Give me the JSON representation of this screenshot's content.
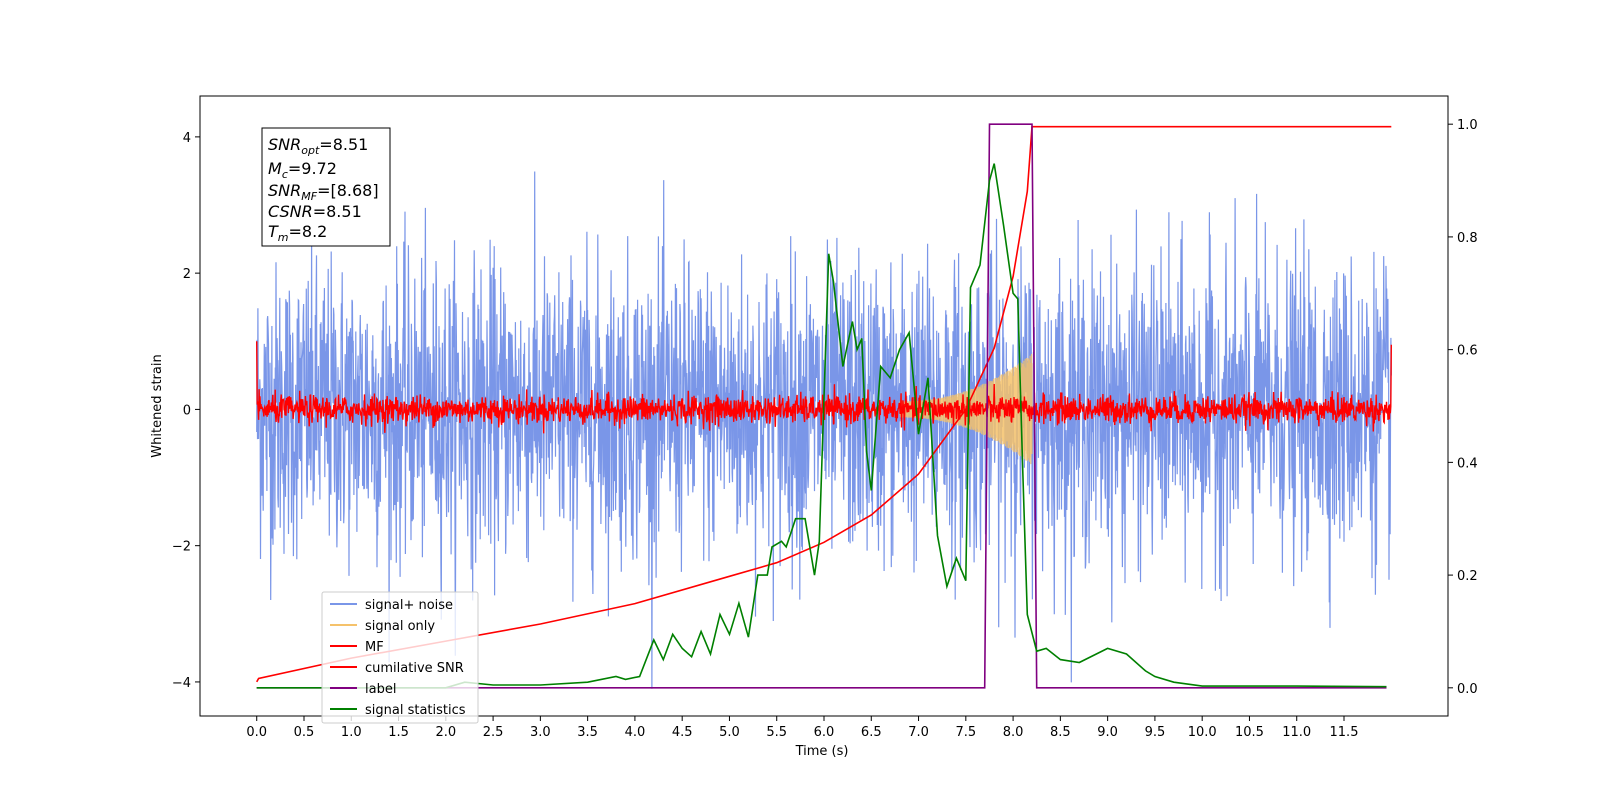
{
  "chart_data": {
    "type": "line",
    "xlabel": "Time (s)",
    "ylabel": "Whitened strain",
    "xlim": [
      -0.6,
      12.6
    ],
    "ylim": [
      -4.5,
      4.6
    ],
    "ylim_right": [
      -0.05,
      1.05
    ],
    "x_ticks": [
      "0.0",
      "0.5",
      "1.0",
      "1.5",
      "2.0",
      "2.5",
      "3.0",
      "3.5",
      "4.0",
      "4.5",
      "5.0",
      "5.5",
      "6.0",
      "6.5",
      "7.0",
      "7.5",
      "8.0",
      "8.5",
      "9.0",
      "9.5",
      "10.0",
      "10.5",
      "11.0",
      "11.5"
    ],
    "y_ticks_left": [
      "4",
      "2",
      "0",
      "−2",
      "−4"
    ],
    "y_ticks_right": [
      "1.0",
      "0.8",
      "0.6",
      "0.4",
      "0.2",
      "0.0"
    ],
    "grid": false,
    "legend_position": "lower-left",
    "info_box": {
      "snr_opt": {
        "main": "SNR",
        "sub": "opt",
        "value": "=8.51"
      },
      "mc": {
        "main": "M",
        "sub": "c",
        "value": "=9.72"
      },
      "snr_mf": {
        "main": "SNR",
        "sub": "MF",
        "value": "=[8.68]"
      },
      "csnr": {
        "main": "CSNR",
        "sub": "",
        "value": "=8.51"
      },
      "tm": {
        "main": "T",
        "sub": "m",
        "value": "=8.2"
      }
    },
    "series": [
      {
        "name": "signal+ noise",
        "axis": "left",
        "color": "#7a96e8",
        "noise_amplitude": 1.3,
        "range": [
          0.0,
          12.0
        ]
      },
      {
        "name": "signal only",
        "axis": "left",
        "color": "#f5c26b",
        "chirp_start": 6.8,
        "chirp_end": 8.2,
        "peak_amplitude": 0.7
      },
      {
        "name": "MF",
        "axis": "left",
        "color": "#ff0000",
        "noise_amplitude": 0.13,
        "range": [
          0.0,
          12.0
        ]
      },
      {
        "name": "cumilative SNR",
        "axis": "left",
        "color": "#ff0000",
        "x": [
          0.0,
          0.02,
          1.0,
          2.0,
          3.0,
          4.0,
          5.0,
          5.5,
          6.0,
          6.5,
          7.0,
          7.5,
          7.8,
          8.0,
          8.15,
          8.2,
          12.0
        ],
        "y": [
          -4.0,
          -3.95,
          -3.65,
          -3.4,
          -3.15,
          -2.85,
          -2.45,
          -2.25,
          -1.95,
          -1.55,
          -0.95,
          0.0,
          0.9,
          1.95,
          3.2,
          4.15,
          4.15
        ]
      },
      {
        "name": "label",
        "axis": "right",
        "color": "#800080",
        "x": [
          0.0,
          7.7,
          7.75,
          8.2,
          8.25,
          11.95
        ],
        "y": [
          0.0,
          0.0,
          1.0,
          1.0,
          0.0,
          0.0
        ]
      },
      {
        "name": "signal statistics",
        "axis": "right",
        "color": "#008000",
        "x": [
          0.0,
          1.0,
          2.0,
          2.2,
          2.5,
          3.0,
          3.5,
          3.8,
          3.9,
          4.05,
          4.2,
          4.3,
          4.4,
          4.5,
          4.6,
          4.7,
          4.8,
          4.9,
          5.0,
          5.1,
          5.2,
          5.3,
          5.4,
          5.45,
          5.55,
          5.6,
          5.7,
          5.8,
          5.9,
          5.95,
          6.05,
          6.1,
          6.2,
          6.3,
          6.35,
          6.4,
          6.45,
          6.5,
          6.6,
          6.7,
          6.8,
          6.9,
          7.0,
          7.1,
          7.2,
          7.3,
          7.4,
          7.5,
          7.55,
          7.65,
          7.75,
          7.8,
          7.9,
          8.0,
          8.05,
          8.1,
          8.15,
          8.25,
          8.35,
          8.5,
          8.7,
          9.0,
          9.2,
          9.4,
          9.5,
          9.7,
          10.0,
          11.0,
          11.95
        ],
        "y": [
          0.0,
          0.0,
          0.0,
          0.01,
          0.005,
          0.005,
          0.01,
          0.02,
          0.015,
          0.02,
          0.085,
          0.05,
          0.095,
          0.07,
          0.055,
          0.1,
          0.06,
          0.13,
          0.095,
          0.15,
          0.09,
          0.2,
          0.2,
          0.25,
          0.26,
          0.25,
          0.3,
          0.3,
          0.2,
          0.26,
          0.77,
          0.72,
          0.57,
          0.65,
          0.6,
          0.62,
          0.42,
          0.35,
          0.57,
          0.55,
          0.6,
          0.63,
          0.45,
          0.55,
          0.27,
          0.18,
          0.23,
          0.19,
          0.71,
          0.75,
          0.9,
          0.93,
          0.82,
          0.7,
          0.69,
          0.4,
          0.13,
          0.065,
          0.07,
          0.05,
          0.045,
          0.07,
          0.06,
          0.03,
          0.02,
          0.01,
          0.003,
          0.003,
          0.002
        ]
      }
    ]
  }
}
